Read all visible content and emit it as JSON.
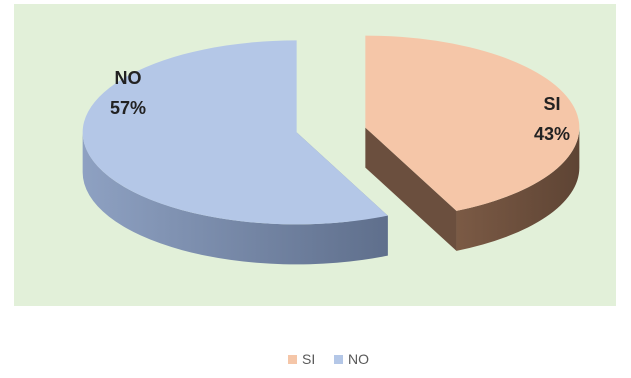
{
  "chart_data": {
    "type": "pie",
    "style": "3d-exploded",
    "title": "",
    "slices": [
      {
        "label": "SI",
        "value": 43,
        "display_label": "SI",
        "display_value": "43%",
        "color": "#F5C6A8",
        "side_color": "#6B4F3E"
      },
      {
        "label": "NO",
        "value": 57,
        "display_label": "NO",
        "display_value": "57%",
        "color": "#B4C7E7",
        "side_color": "#6C7D99"
      }
    ],
    "legend": {
      "position": "bottom",
      "items": [
        {
          "label": "SI",
          "color": "#F5C6A8"
        },
        {
          "label": "NO",
          "color": "#B4C7E7"
        }
      ]
    },
    "plot_background": "#E2F0D9"
  }
}
